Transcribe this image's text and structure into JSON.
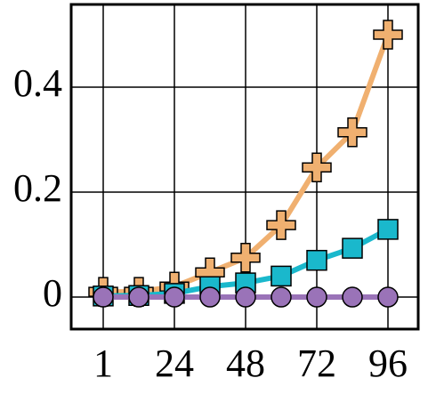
{
  "chart_data": {
    "type": "line",
    "categories": [
      "1",
      null,
      "24",
      null,
      "48",
      null,
      "72",
      null,
      "96"
    ],
    "series": [
      {
        "color": "#f0b070",
        "marker": "plus",
        "values": [
          0.01,
          0.01,
          0.02,
          0.047,
          0.075,
          0.137,
          0.247,
          0.314,
          0.5
        ]
      },
      {
        "color": "#1ab8cc",
        "marker": "square",
        "values": [
          0.002,
          0.003,
          0.007,
          0.02,
          0.027,
          0.04,
          0.07,
          0.093,
          0.129
        ]
      },
      {
        "color": "#9a73b8",
        "marker": "circle",
        "values": [
          0,
          0,
          0,
          0,
          0,
          0,
          0,
          0,
          0
        ]
      }
    ],
    "ylim": [
      -0.061,
      0.5576
    ],
    "yticks": [
      0,
      0.2,
      0.4
    ],
    "grid": true
  }
}
